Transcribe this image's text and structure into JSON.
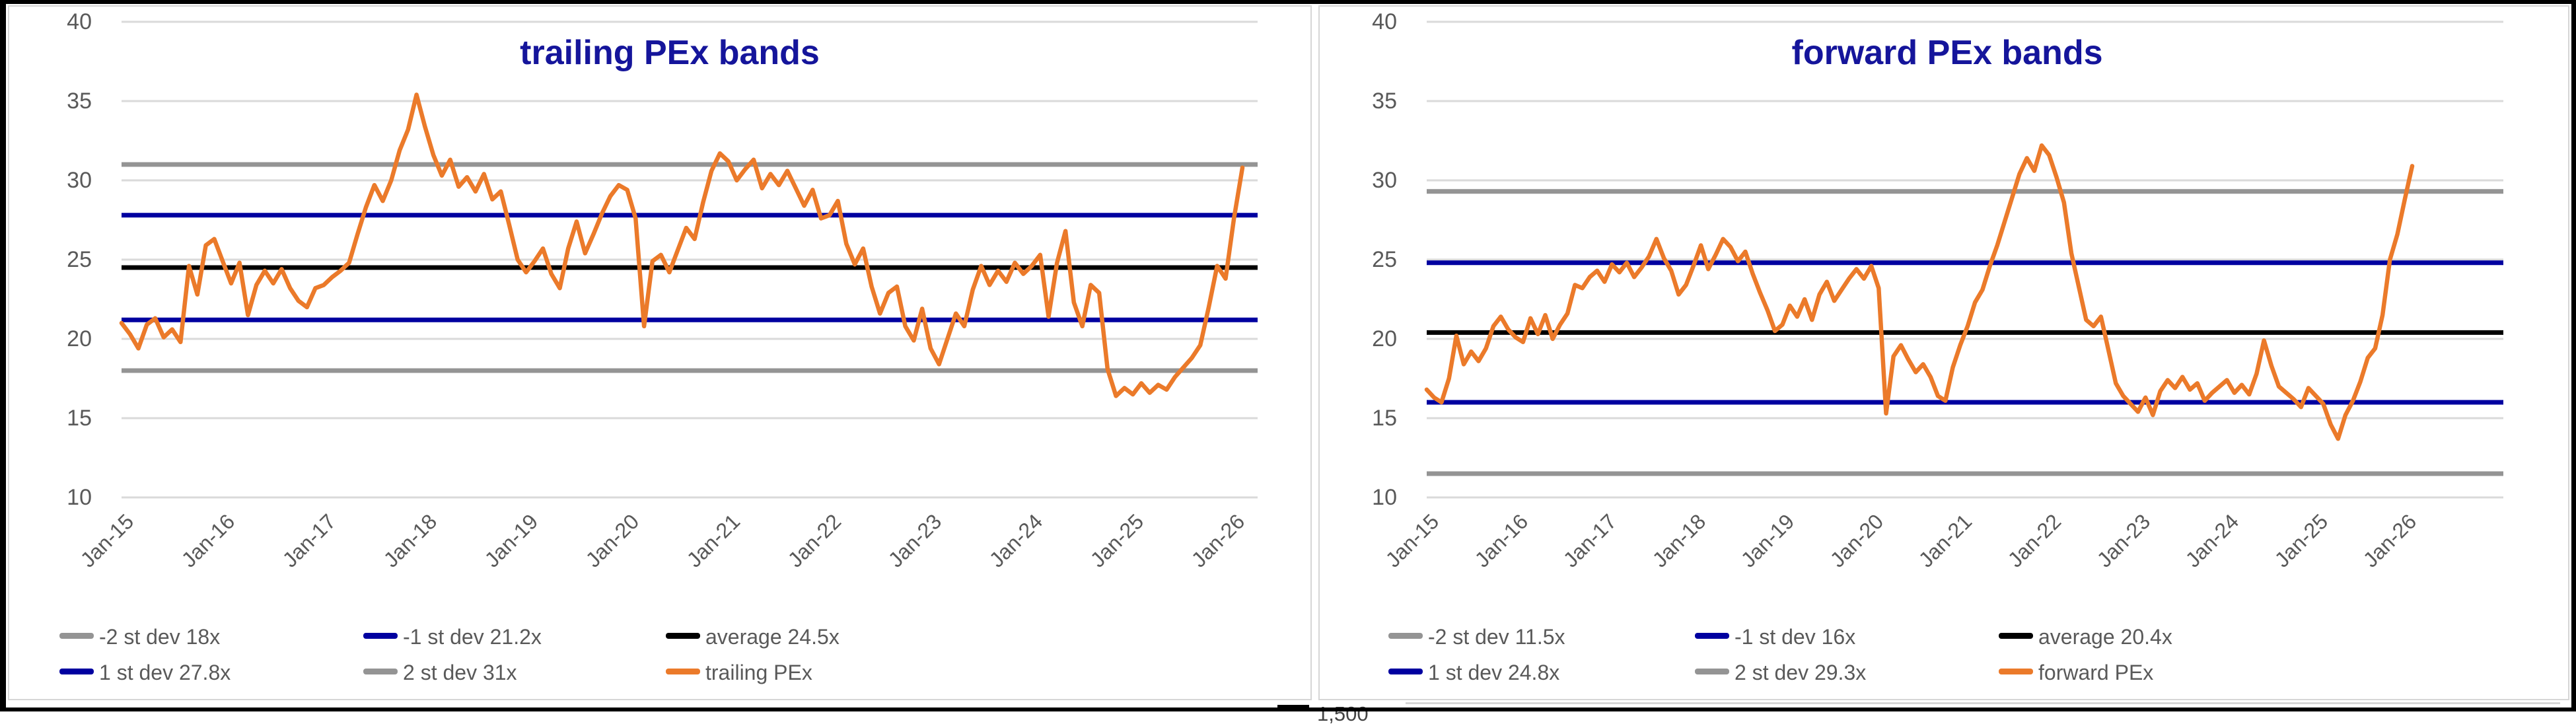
{
  "frame": {
    "border_color": "#000000",
    "background": "#FFFFFF"
  },
  "bottom_sliver": {
    "partial_tick_label": "1,500"
  },
  "chart_data": [
    {
      "type": "line",
      "title": "trailing PEx bands",
      "title_color": "#15159b",
      "xlabel": "",
      "ylabel": "",
      "ylim": [
        10,
        40
      ],
      "y_ticks": [
        40,
        35,
        30,
        25,
        20,
        15,
        10
      ],
      "x_tick_labels": [
        "Jan-15",
        "Jan-16",
        "Jan-17",
        "Jan-18",
        "Jan-19",
        "Jan-20",
        "Jan-21",
        "Jan-22",
        "Jan-23",
        "Jan-24",
        "Jan-25",
        "Jan-26"
      ],
      "x_frequency": "monthly from Jan-2015 to Feb-2026",
      "grid": true,
      "legend_position": "bottom",
      "axis_text_color": "#595959",
      "gridline_color": "#DADADA",
      "bands": [
        {
          "key": "minus-2-st-dev",
          "label": "-2 st dev 18x",
          "value": 18,
          "color": "#949494"
        },
        {
          "key": "minus-1-st-dev",
          "label": "-1 st dev 21.2x",
          "value": 21.2,
          "color": "#0000A0"
        },
        {
          "key": "average",
          "label": "average 24.5x",
          "value": 24.5,
          "color": "#000000"
        },
        {
          "key": "plus-1-st-dev",
          "label": "1 st dev 27.8x",
          "value": 27.8,
          "color": "#0000A0"
        },
        {
          "key": "plus-2-st-dev",
          "label": "2 st dev 31x",
          "value": 31,
          "color": "#949494"
        }
      ],
      "series": [
        {
          "key": "trailing-pex",
          "name": "trailing PEx",
          "color": "#EB7A2A",
          "monthly_values": [
            21.0,
            20.3,
            19.4,
            20.9,
            21.3,
            20.1,
            20.6,
            19.8,
            24.6,
            22.8,
            25.9,
            26.3,
            24.9,
            23.5,
            24.8,
            21.5,
            23.4,
            24.3,
            23.5,
            24.4,
            23.2,
            22.4,
            22.0,
            23.2,
            23.4,
            23.9,
            24.3,
            24.8,
            26.6,
            28.3,
            29.7,
            28.7,
            30.0,
            31.9,
            33.2,
            35.4,
            33.4,
            31.6,
            30.3,
            31.3,
            29.6,
            30.2,
            29.3,
            30.4,
            28.8,
            29.3,
            27.2,
            25.0,
            24.2,
            24.9,
            25.7,
            24.1,
            23.2,
            25.7,
            27.4,
            25.4,
            26.6,
            27.9,
            29.0,
            29.7,
            29.4,
            27.6,
            20.8,
            24.9,
            25.3,
            24.2,
            25.6,
            27.0,
            26.3,
            28.6,
            30.6,
            31.7,
            31.2,
            30.0,
            30.7,
            31.3,
            29.5,
            30.4,
            29.7,
            30.6,
            29.5,
            28.4,
            29.4,
            27.6,
            27.8,
            28.7,
            26.0,
            24.7,
            25.7,
            23.3,
            21.6,
            22.9,
            23.3,
            20.8,
            19.9,
            21.9,
            19.4,
            18.4,
            20.0,
            21.6,
            20.8,
            23.1,
            24.6,
            23.4,
            24.3,
            23.6,
            24.8,
            24.1,
            24.6,
            25.3,
            21.4,
            24.8,
            26.8,
            22.3,
            20.8,
            23.4,
            22.9,
            18.1,
            16.4,
            16.9,
            16.5,
            17.2,
            16.6,
            17.1,
            16.8,
            17.6,
            18.2,
            18.8,
            19.6,
            22.0,
            24.6,
            23.8,
            27.6,
            30.8
          ]
        }
      ]
    },
    {
      "type": "line",
      "title": "forward PEx bands",
      "title_color": "#15159b",
      "xlabel": "",
      "ylabel": "",
      "ylim": [
        10,
        40
      ],
      "y_ticks": [
        40,
        35,
        30,
        25,
        20,
        15,
        10
      ],
      "x_tick_labels": [
        "Jan-15",
        "Jan-16",
        "Jan-17",
        "Jan-18",
        "Jan-19",
        "Jan-20",
        "Jan-21",
        "Jan-22",
        "Jan-23",
        "Jan-24",
        "Jan-25",
        "Jan-26"
      ],
      "x_frequency": "monthly from Jan-2015 to Feb-2026",
      "grid": true,
      "legend_position": "bottom",
      "axis_text_color": "#595959",
      "gridline_color": "#DADADA",
      "bands": [
        {
          "key": "minus-2-st-dev",
          "label": "-2 st dev 11.5x",
          "value": 11.5,
          "color": "#949494"
        },
        {
          "key": "minus-1-st-dev",
          "label": "-1 st dev 16x",
          "value": 16,
          "color": "#0000A0"
        },
        {
          "key": "average",
          "label": "average 20.4x",
          "value": 20.4,
          "color": "#000000"
        },
        {
          "key": "plus-1-st-dev",
          "label": "1 st dev 24.8x",
          "value": 24.8,
          "color": "#0000A0"
        },
        {
          "key": "plus-2-st-dev",
          "label": "2 st dev 29.3x",
          "value": 29.3,
          "color": "#949494"
        }
      ],
      "series": [
        {
          "key": "forward-pex",
          "name": "forward PEx",
          "color": "#EB7A2A",
          "monthly_values": [
            16.8,
            16.3,
            16.0,
            17.5,
            20.2,
            18.4,
            19.2,
            18.6,
            19.4,
            20.8,
            21.4,
            20.6,
            20.1,
            19.8,
            21.3,
            20.3,
            21.5,
            20.0,
            20.9,
            21.6,
            23.4,
            23.2,
            23.9,
            24.3,
            23.6,
            24.7,
            24.2,
            24.8,
            23.9,
            24.5,
            25.2,
            26.3,
            25.1,
            24.3,
            22.8,
            23.4,
            24.6,
            25.9,
            24.4,
            25.3,
            26.3,
            25.8,
            24.9,
            25.5,
            24.1,
            22.9,
            21.8,
            20.5,
            20.9,
            22.1,
            21.4,
            22.5,
            21.2,
            22.8,
            23.6,
            22.4,
            23.1,
            23.8,
            24.4,
            23.8,
            24.6,
            23.2,
            15.3,
            18.9,
            19.6,
            18.7,
            17.9,
            18.4,
            17.6,
            16.4,
            16.1,
            18.2,
            19.6,
            20.8,
            22.3,
            23.1,
            24.6,
            25.9,
            27.4,
            28.9,
            30.4,
            31.4,
            30.6,
            32.2,
            31.6,
            30.2,
            28.6,
            25.4,
            23.3,
            21.2,
            20.8,
            21.4,
            19.3,
            17.2,
            16.4,
            15.9,
            15.4,
            16.3,
            15.2,
            16.7,
            17.4,
            16.9,
            17.6,
            16.8,
            17.2,
            16.1,
            16.6,
            17.0,
            17.4,
            16.6,
            17.1,
            16.5,
            17.8,
            19.9,
            18.3,
            17.0,
            16.6,
            16.2,
            15.7,
            16.9,
            16.4,
            15.9,
            14.6,
            13.7,
            15.2,
            16.1,
            17.3,
            18.8,
            19.4,
            21.5,
            25.0,
            26.6,
            28.8,
            30.9
          ]
        }
      ]
    }
  ]
}
